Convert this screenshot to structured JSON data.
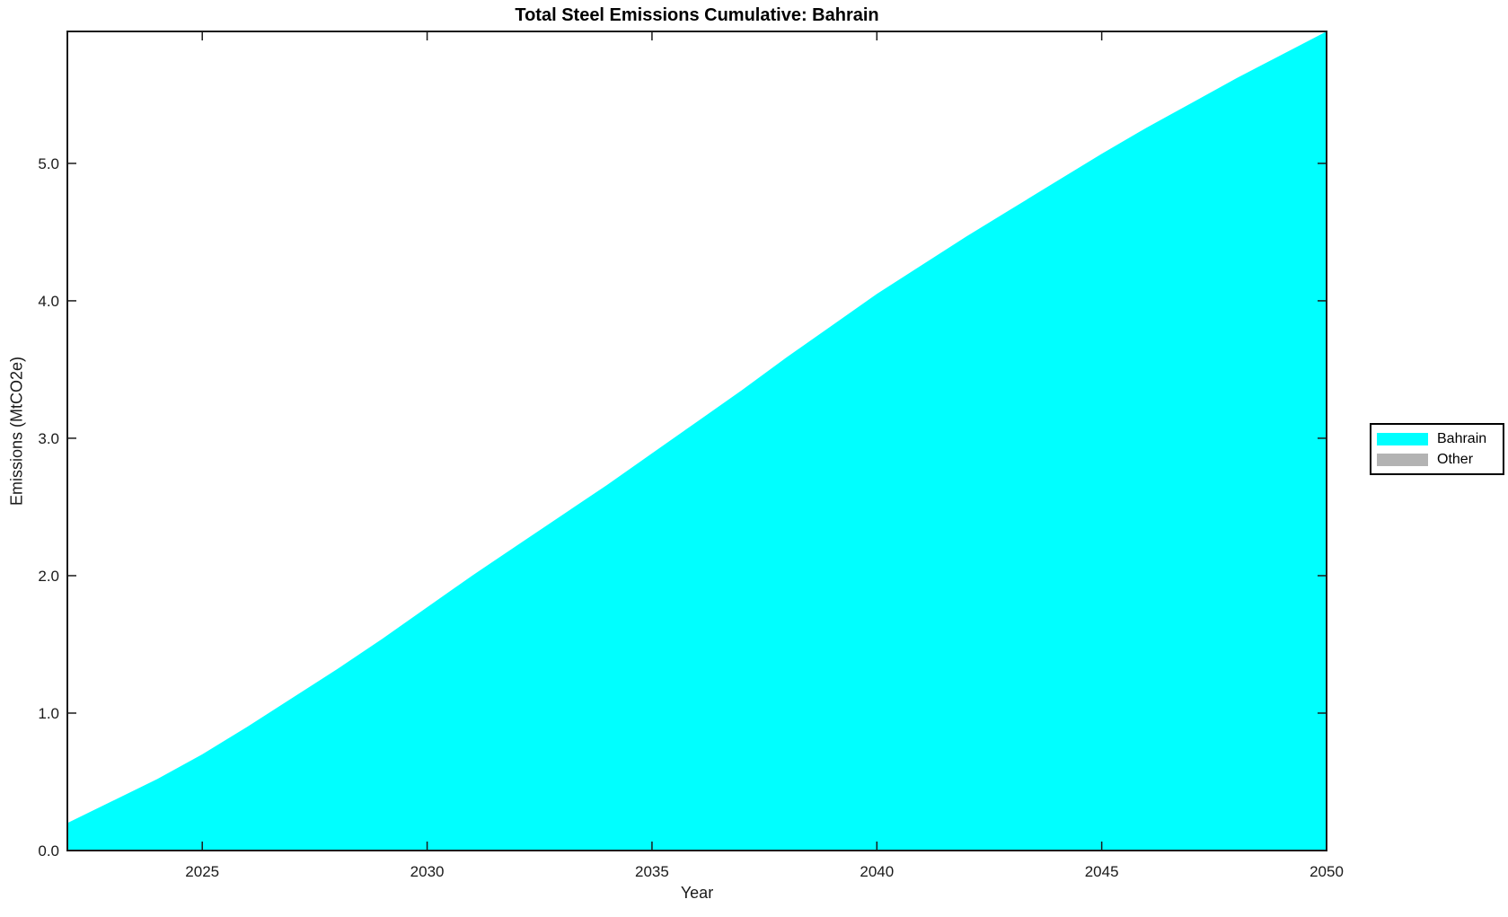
{
  "figure": {
    "background": "#ffffff",
    "text_color": "#1a1a1a",
    "axis_color": "#1a1a1a"
  },
  "chart_data": {
    "type": "area",
    "title": "Total Steel Emissions Cumulative: Bahrain",
    "xlabel": "Year",
    "ylabel": "Emissions (MtCO2e)",
    "x": [
      2022,
      2023,
      2024,
      2025,
      2026,
      2027,
      2028,
      2029,
      2030,
      2031,
      2032,
      2033,
      2034,
      2035,
      2036,
      2037,
      2038,
      2039,
      2040,
      2041,
      2042,
      2043,
      2044,
      2045,
      2046,
      2047,
      2048,
      2049,
      2050
    ],
    "series": [
      {
        "name": "Bahrain",
        "color": "#00FFFF",
        "values": [
          0.2,
          0.36,
          0.52,
          0.7,
          0.9,
          1.11,
          1.32,
          1.54,
          1.77,
          2.0,
          2.22,
          2.44,
          2.66,
          2.89,
          3.12,
          3.35,
          3.59,
          3.82,
          4.05,
          4.26,
          4.47,
          4.67,
          4.87,
          5.07,
          5.26,
          5.44,
          5.62,
          5.79,
          5.96
        ]
      },
      {
        "name": "Other",
        "color": "#B3B3B3",
        "values": [
          0,
          0,
          0,
          0,
          0,
          0,
          0,
          0,
          0,
          0,
          0,
          0,
          0,
          0,
          0,
          0,
          0,
          0,
          0,
          0,
          0,
          0,
          0,
          0,
          0,
          0,
          0,
          0,
          0
        ]
      }
    ],
    "xlim": [
      2022,
      2050
    ],
    "ylim": [
      0,
      5.96
    ],
    "xticks": [
      2025,
      2030,
      2035,
      2040,
      2045,
      2050
    ],
    "yticks": [
      "0.0",
      "1.0",
      "2.0",
      "3.0",
      "4.0",
      "5.0"
    ],
    "grid": false,
    "legend_position": "right-outside",
    "legend_title": ""
  }
}
